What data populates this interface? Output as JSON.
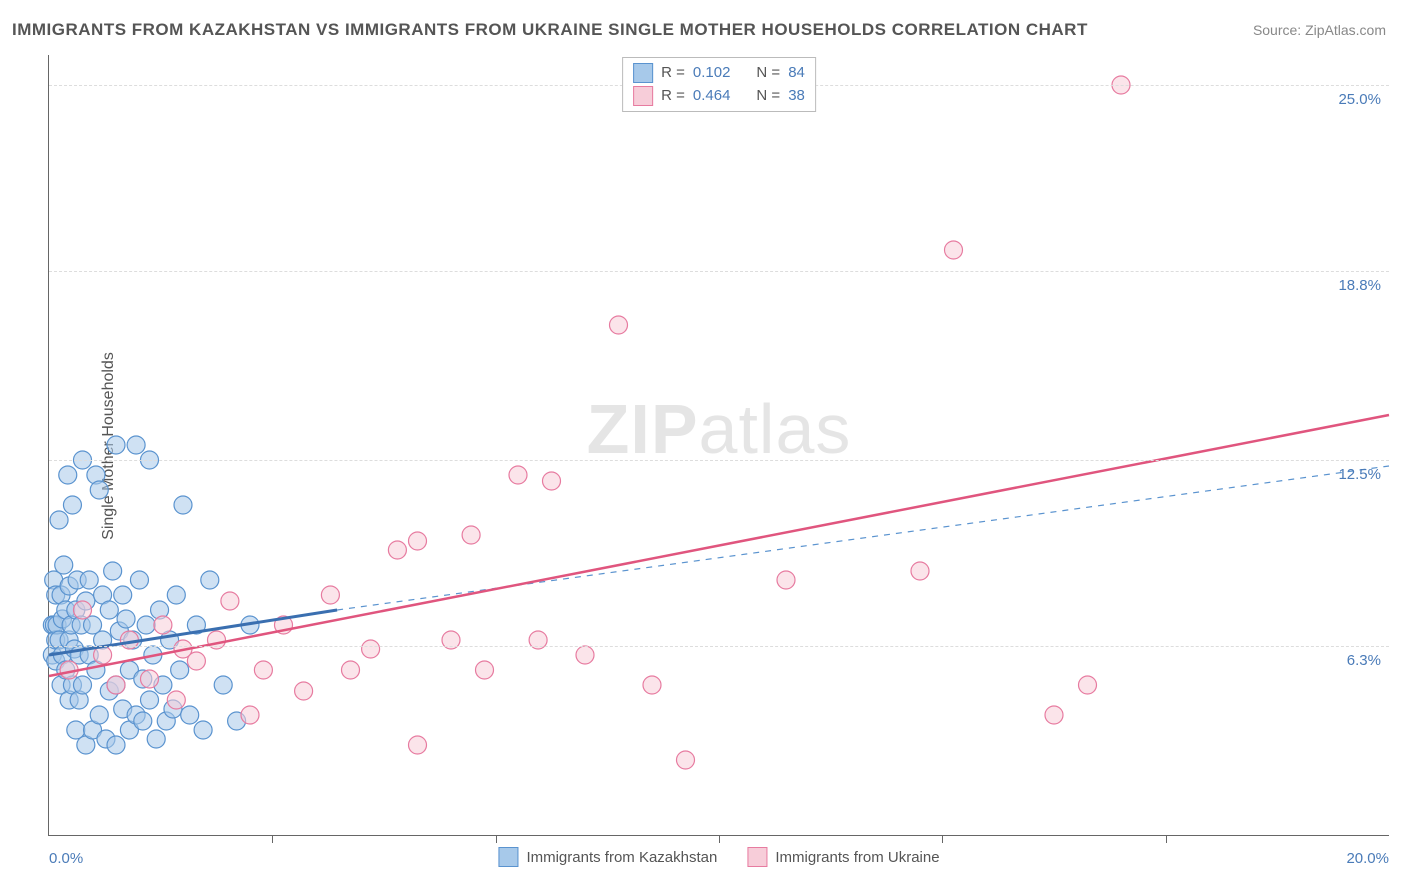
{
  "title": "IMMIGRANTS FROM KAZAKHSTAN VS IMMIGRANTS FROM UKRAINE SINGLE MOTHER HOUSEHOLDS CORRELATION CHART",
  "source": "Source: ZipAtlas.com",
  "ylabel": "Single Mother Households",
  "watermark_bold": "ZIP",
  "watermark_rest": "atlas",
  "xlim": [
    0,
    20
  ],
  "ylim": [
    0,
    26
  ],
  "xtick_labels": [
    {
      "v": 0,
      "label": "0.0%"
    },
    {
      "v": 20,
      "label": "20.0%"
    }
  ],
  "ytick_labels": [
    {
      "v": 6.3,
      "label": "6.3%"
    },
    {
      "v": 12.5,
      "label": "12.5%"
    },
    {
      "v": 18.8,
      "label": "18.8%"
    },
    {
      "v": 25.0,
      "label": "25.0%"
    }
  ],
  "xtick_minor": [
    3.33,
    6.67,
    10,
    13.33,
    16.67
  ],
  "series": [
    {
      "name": "Immigrants from Kazakhstan",
      "color_fill": "#a7c9ea",
      "color_stroke": "#5a93cf",
      "marker_radius": 9,
      "R": "0.102",
      "N": "84",
      "trend": {
        "x1": 0,
        "y1": 6.0,
        "x2": 4.3,
        "y2": 7.5,
        "dashed": false,
        "width": 3,
        "color": "#3a6fb0"
      },
      "trend_ext": {
        "x1": 4.3,
        "y1": 7.5,
        "x2": 20,
        "y2": 12.3,
        "dashed": true,
        "width": 1.2,
        "color": "#5a93cf"
      },
      "points": [
        [
          0.05,
          7.0
        ],
        [
          0.05,
          6.0
        ],
        [
          0.07,
          8.5
        ],
        [
          0.08,
          7.0
        ],
        [
          0.1,
          5.8
        ],
        [
          0.1,
          6.5
        ],
        [
          0.1,
          8.0
        ],
        [
          0.12,
          7.0
        ],
        [
          0.15,
          6.5
        ],
        [
          0.15,
          10.5
        ],
        [
          0.18,
          5.0
        ],
        [
          0.18,
          8.0
        ],
        [
          0.2,
          6.0
        ],
        [
          0.2,
          7.2
        ],
        [
          0.22,
          9.0
        ],
        [
          0.25,
          5.5
        ],
        [
          0.25,
          7.5
        ],
        [
          0.28,
          12.0
        ],
        [
          0.3,
          4.5
        ],
        [
          0.3,
          6.5
        ],
        [
          0.3,
          8.3
        ],
        [
          0.33,
          7.0
        ],
        [
          0.35,
          5.0
        ],
        [
          0.35,
          11.0
        ],
        [
          0.38,
          6.2
        ],
        [
          0.4,
          7.5
        ],
        [
          0.4,
          3.5
        ],
        [
          0.42,
          8.5
        ],
        [
          0.45,
          6.0
        ],
        [
          0.45,
          4.5
        ],
        [
          0.48,
          7.0
        ],
        [
          0.5,
          12.5
        ],
        [
          0.5,
          5.0
        ],
        [
          0.55,
          7.8
        ],
        [
          0.55,
          3.0
        ],
        [
          0.6,
          8.5
        ],
        [
          0.6,
          6.0
        ],
        [
          0.65,
          3.5
        ],
        [
          0.65,
          7.0
        ],
        [
          0.7,
          12.0
        ],
        [
          0.7,
          5.5
        ],
        [
          0.75,
          11.5
        ],
        [
          0.75,
          4.0
        ],
        [
          0.8,
          8.0
        ],
        [
          0.8,
          6.5
        ],
        [
          0.85,
          3.2
        ],
        [
          0.9,
          7.5
        ],
        [
          0.9,
          4.8
        ],
        [
          0.95,
          8.8
        ],
        [
          1.0,
          13.0
        ],
        [
          1.0,
          5.0
        ],
        [
          1.0,
          3.0
        ],
        [
          1.05,
          6.8
        ],
        [
          1.1,
          8.0
        ],
        [
          1.1,
          4.2
        ],
        [
          1.15,
          7.2
        ],
        [
          1.2,
          5.5
        ],
        [
          1.2,
          3.5
        ],
        [
          1.25,
          6.5
        ],
        [
          1.3,
          13.0
        ],
        [
          1.3,
          4.0
        ],
        [
          1.35,
          8.5
        ],
        [
          1.4,
          5.2
        ],
        [
          1.4,
          3.8
        ],
        [
          1.45,
          7.0
        ],
        [
          1.5,
          12.5
        ],
        [
          1.5,
          4.5
        ],
        [
          1.55,
          6.0
        ],
        [
          1.6,
          3.2
        ],
        [
          1.65,
          7.5
        ],
        [
          1.7,
          5.0
        ],
        [
          1.75,
          3.8
        ],
        [
          1.8,
          6.5
        ],
        [
          1.85,
          4.2
        ],
        [
          1.9,
          8.0
        ],
        [
          1.95,
          5.5
        ],
        [
          2.0,
          11.0
        ],
        [
          2.1,
          4.0
        ],
        [
          2.2,
          7.0
        ],
        [
          2.3,
          3.5
        ],
        [
          2.4,
          8.5
        ],
        [
          2.6,
          5.0
        ],
        [
          2.8,
          3.8
        ],
        [
          3.0,
          7.0
        ]
      ]
    },
    {
      "name": "Immigrants from Ukraine",
      "color_fill": "#f7cdd9",
      "color_stroke": "#e77ba0",
      "marker_radius": 9,
      "R": "0.464",
      "N": "38",
      "trend": {
        "x1": 0,
        "y1": 5.3,
        "x2": 20,
        "y2": 14.0,
        "dashed": false,
        "width": 2.5,
        "color": "#e0557e"
      },
      "points": [
        [
          0.3,
          5.5
        ],
        [
          0.5,
          7.5
        ],
        [
          0.8,
          6.0
        ],
        [
          1.0,
          5.0
        ],
        [
          1.2,
          6.5
        ],
        [
          1.5,
          5.2
        ],
        [
          1.7,
          7.0
        ],
        [
          1.9,
          4.5
        ],
        [
          2.0,
          6.2
        ],
        [
          2.2,
          5.8
        ],
        [
          2.5,
          6.5
        ],
        [
          2.7,
          7.8
        ],
        [
          3.0,
          4.0
        ],
        [
          3.2,
          5.5
        ],
        [
          3.5,
          7.0
        ],
        [
          3.8,
          4.8
        ],
        [
          4.2,
          8.0
        ],
        [
          4.5,
          5.5
        ],
        [
          4.8,
          6.2
        ],
        [
          5.2,
          9.5
        ],
        [
          5.5,
          9.8
        ],
        [
          5.5,
          3.0
        ],
        [
          6.0,
          6.5
        ],
        [
          6.3,
          10.0
        ],
        [
          6.5,
          5.5
        ],
        [
          7.0,
          12.0
        ],
        [
          7.3,
          6.5
        ],
        [
          7.5,
          11.8
        ],
        [
          8.0,
          6.0
        ],
        [
          8.5,
          17.0
        ],
        [
          9.0,
          5.0
        ],
        [
          9.5,
          2.5
        ],
        [
          11.0,
          8.5
        ],
        [
          13.0,
          8.8
        ],
        [
          13.5,
          19.5
        ],
        [
          15.0,
          4.0
        ],
        [
          15.5,
          5.0
        ],
        [
          16.0,
          25.0
        ]
      ]
    }
  ],
  "legend_top": {
    "r_label": "R =",
    "n_label": "N ="
  },
  "bottom_legend_label_1": "Immigrants from Kazakhstan",
  "bottom_legend_label_2": "Immigrants from Ukraine"
}
